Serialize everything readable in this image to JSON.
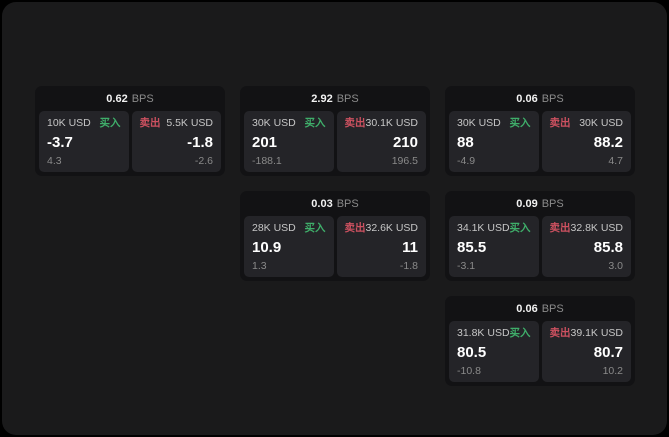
{
  "colors": {
    "window_bg": "#1a1a1b",
    "card_bg": "#121214",
    "panel_bg": "#242428",
    "buy_color": "#3fae6a",
    "sell_color": "#cd5160"
  },
  "cards": [
    {
      "bps_value": "0.62",
      "bps_unit": "BPS",
      "buy": {
        "size": "10K USD",
        "side": "买入",
        "price": "-3.7",
        "change": "4.3"
      },
      "sell": {
        "side": "卖出",
        "size": "5.5K USD",
        "price": "-1.8",
        "change": "-2.6"
      }
    },
    {
      "bps_value": "2.92",
      "bps_unit": "BPS",
      "buy": {
        "size": "30K USD",
        "side": "买入",
        "price": "201",
        "change": "-188.1"
      },
      "sell": {
        "side": "卖出",
        "size": "30.1K USD",
        "price": "210",
        "change": "196.5"
      }
    },
    {
      "bps_value": "0.06",
      "bps_unit": "BPS",
      "buy": {
        "size": "30K USD",
        "side": "买入",
        "price": "88",
        "change": "-4.9"
      },
      "sell": {
        "side": "卖出",
        "size": "30K USD",
        "price": "88.2",
        "change": "4.7"
      }
    },
    {
      "bps_value": "0.03",
      "bps_unit": "BPS",
      "buy": {
        "size": "28K USD",
        "side": "买入",
        "price": "10.9",
        "change": "1.3"
      },
      "sell": {
        "side": "卖出",
        "size": "32.6K USD",
        "price": "11",
        "change": "-1.8"
      }
    },
    {
      "bps_value": "0.09",
      "bps_unit": "BPS",
      "buy": {
        "size": "34.1K USD",
        "side": "买入",
        "price": "85.5",
        "change": "-3.1"
      },
      "sell": {
        "side": "卖出",
        "size": "32.8K USD",
        "price": "85.8",
        "change": "3.0"
      }
    },
    {
      "bps_value": "0.06",
      "bps_unit": "BPS",
      "buy": {
        "size": "31.8K USD",
        "side": "买入",
        "price": "80.5",
        "change": "-10.8"
      },
      "sell": {
        "side": "卖出",
        "size": "39.1K USD",
        "price": "80.7",
        "change": "10.2"
      }
    }
  ]
}
